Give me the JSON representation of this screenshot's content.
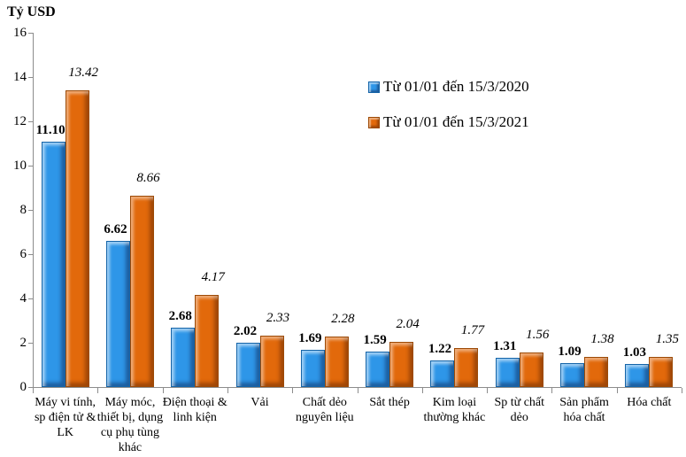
{
  "chart_data": {
    "type": "bar",
    "ylabel": "Tỷ USD",
    "ylim": [
      0,
      16
    ],
    "yticks": [
      0,
      2,
      4,
      6,
      8,
      10,
      12,
      14,
      16
    ],
    "grid": false,
    "legend_position": "upper-center-right",
    "categories": [
      "Máy vi tính, sp điện tử & LK",
      "Máy móc, thiết bị, dụng cụ phụ tùng khác",
      "Điện thoại & linh kiện",
      "Vải",
      "Chất dẻo nguyên liệu",
      "Sắt thép",
      "Kim loại thường khác",
      "Sp từ chất dẻo",
      "Sản phẩm hóa chất",
      "Hóa chất"
    ],
    "series": [
      {
        "name": "Từ 01/01 đến 15/3/2020",
        "color": "#2e96e8",
        "color_light": "#7cc4f7",
        "color_dark": "#1464a8",
        "values": [
          11.1,
          6.62,
          2.68,
          2.02,
          1.69,
          1.59,
          1.22,
          1.31,
          1.09,
          1.03
        ],
        "value_labels": [
          "11.10",
          "6.62",
          "2.68",
          "2.02",
          "1.69",
          "1.59",
          "1.22",
          "1.31",
          "1.09",
          "1.03"
        ],
        "label_style": "bold"
      },
      {
        "name": "Từ 01/01 đến 15/3/2021",
        "color": "#e2690b",
        "color_light": "#f5954a",
        "color_dark": "#9c4a06",
        "values": [
          13.42,
          8.66,
          4.17,
          2.33,
          2.28,
          2.04,
          1.77,
          1.56,
          1.38,
          1.35
        ],
        "value_labels": [
          "13.42",
          "8.66",
          "4.17",
          "2.33",
          "2.28",
          "2.04",
          "1.77",
          "1.56",
          "1.38",
          "1.35"
        ],
        "label_style": "italic"
      }
    ]
  }
}
